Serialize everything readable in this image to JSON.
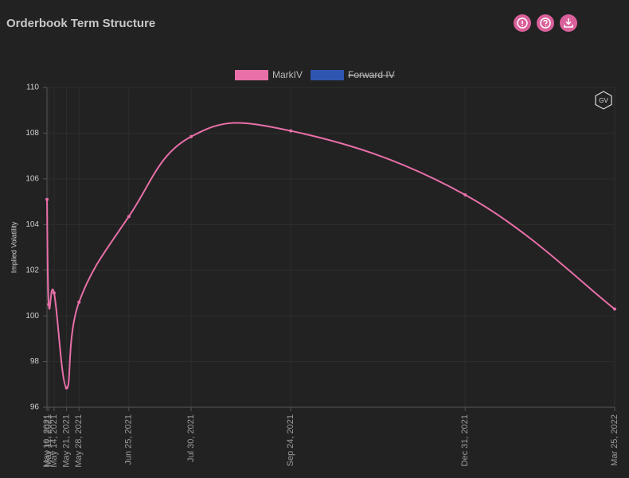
{
  "title": "Orderbook Term Structure",
  "logo": "GV",
  "chart_data": {
    "type": "line",
    "ylabel": "Implied Volatility",
    "x": [
      "May 10, 2021",
      "May 11, 2021",
      "May 14, 2021",
      "May 21, 2021",
      "May 28, 2021",
      "Jun 25, 2021",
      "Jul 30, 2021",
      "Sep 24, 2021",
      "Dec 31, 2021",
      "Mar 25, 2022"
    ],
    "xlim": [
      "May 10, 2021",
      "Mar 25, 2022"
    ],
    "series": [
      {
        "name": "MarkIV",
        "color": "#e86fa8",
        "values": [
          105.1,
          100.5,
          101.0,
          96.85,
          100.6,
          104.35,
          107.85,
          108.1,
          105.3,
          100.3
        ]
      },
      {
        "name": "Forward IV",
        "color": "#2f56b0",
        "hidden": true,
        "values": [
          null,
          null,
          null,
          null,
          null,
          null,
          null,
          null,
          null,
          null
        ]
      }
    ],
    "ylim": [
      96,
      110
    ],
    "yticks": [
      96,
      98,
      100,
      102,
      104,
      106,
      108,
      110
    ],
    "grid": true,
    "legend": "top"
  }
}
